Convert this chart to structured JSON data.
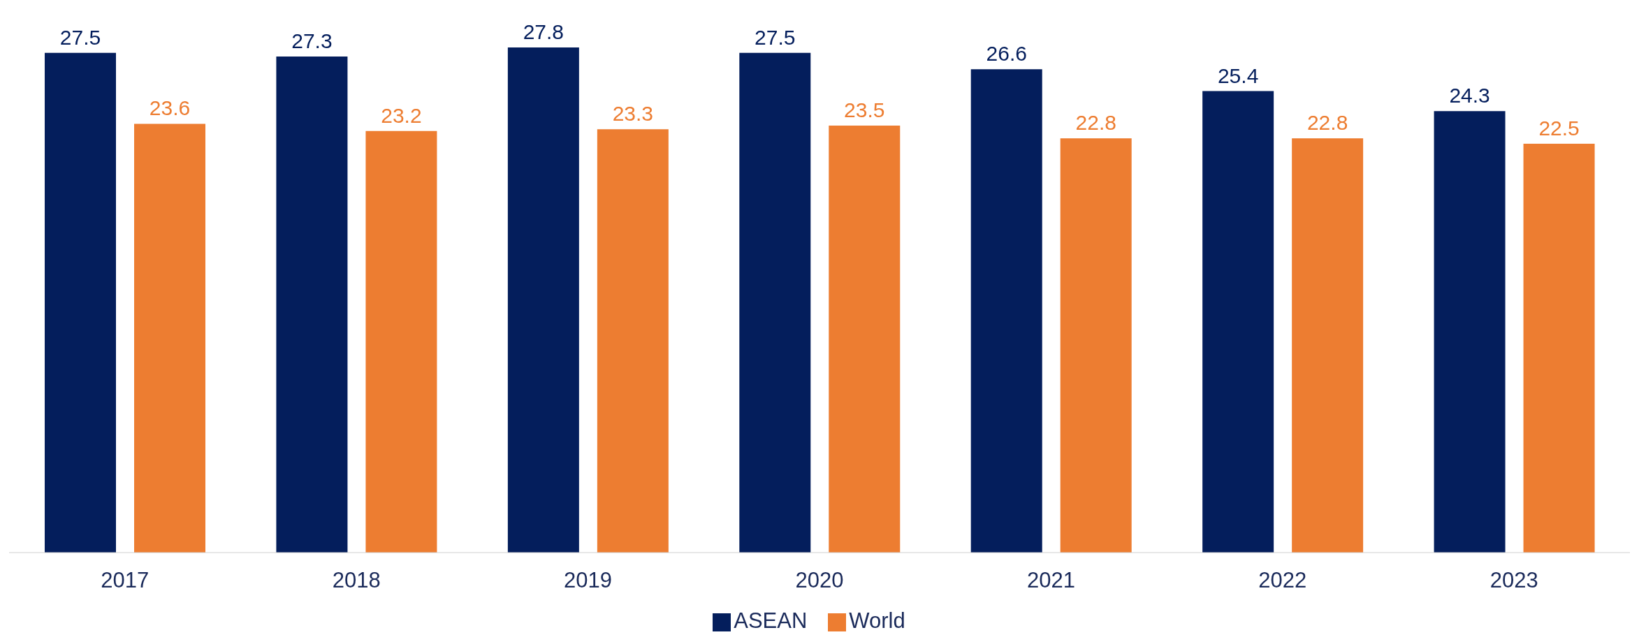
{
  "chart_data": {
    "type": "bar",
    "categories": [
      "2017",
      "2018",
      "2019",
      "2020",
      "2021",
      "2022",
      "2023"
    ],
    "series": [
      {
        "name": "ASEAN",
        "color": "#041e5c",
        "values": [
          27.5,
          27.3,
          27.8,
          27.5,
          26.6,
          25.4,
          24.3
        ]
      },
      {
        "name": "World",
        "color": "#ed7d31",
        "values": [
          23.6,
          23.2,
          23.3,
          23.5,
          22.8,
          22.8,
          22.5
        ]
      }
    ],
    "data_labels": true,
    "grid": false,
    "legend": "bottom"
  }
}
